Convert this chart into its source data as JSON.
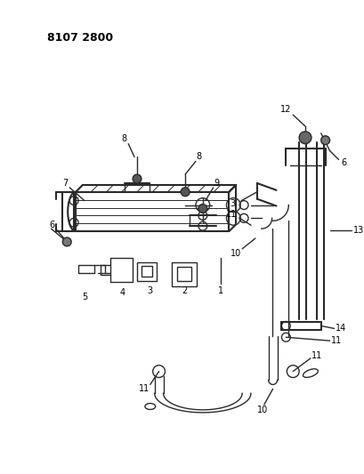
{
  "title_code": "8107 2800",
  "background_color": "#ffffff",
  "line_color": "#2a2a2a",
  "label_color": "#000000",
  "fig_width": 4.1,
  "fig_height": 5.33,
  "dpi": 100
}
